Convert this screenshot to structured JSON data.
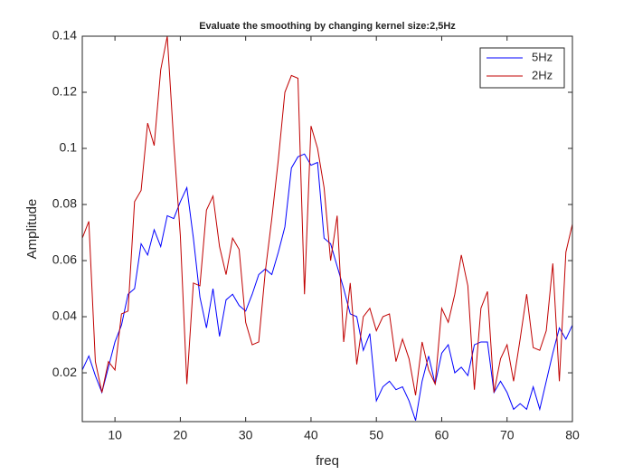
{
  "chart_data": {
    "type": "line",
    "title": "Evaluate the smoothing by changing kernel size:2,5Hz",
    "xlabel": "freq",
    "ylabel": "Amplitude",
    "x": [
      5,
      6,
      7,
      8,
      9,
      10,
      11,
      12,
      13,
      14,
      15,
      16,
      17,
      18,
      19,
      20,
      21,
      22,
      23,
      24,
      25,
      26,
      27,
      28,
      29,
      30,
      31,
      32,
      33,
      34,
      35,
      36,
      37,
      38,
      39,
      40,
      41,
      42,
      43,
      44,
      45,
      46,
      47,
      48,
      49,
      50,
      51,
      52,
      53,
      54,
      55,
      56,
      57,
      58,
      59,
      60,
      61,
      62,
      63,
      64,
      65,
      66,
      67,
      68,
      69,
      70,
      71,
      72,
      73,
      74,
      75,
      76,
      77,
      78,
      79,
      80
    ],
    "series": [
      {
        "name": "5Hz",
        "color": "#0000ff",
        "values": [
          0.021,
          0.026,
          0.019,
          0.013,
          0.022,
          0.031,
          0.037,
          0.048,
          0.05,
          0.066,
          0.062,
          0.071,
          0.065,
          0.076,
          0.075,
          0.081,
          0.086,
          0.068,
          0.047,
          0.036,
          0.05,
          0.033,
          0.046,
          0.048,
          0.044,
          0.042,
          0.048,
          0.055,
          0.057,
          0.055,
          0.063,
          0.072,
          0.093,
          0.097,
          0.098,
          0.094,
          0.095,
          0.068,
          0.066,
          0.058,
          0.05,
          0.041,
          0.04,
          0.028,
          0.034,
          0.01,
          0.015,
          0.017,
          0.014,
          0.015,
          0.01,
          0.003,
          0.017,
          0.026,
          0.016,
          0.027,
          0.03,
          0.02,
          0.022,
          0.019,
          0.03,
          0.031,
          0.031,
          0.013,
          0.017,
          0.013,
          0.007,
          0.009,
          0.007,
          0.015,
          0.007,
          0.017,
          0.027,
          0.036,
          0.032,
          0.037
        ]
      },
      {
        "name": "2Hz",
        "color": "#c00000",
        "values": [
          0.068,
          0.074,
          0.024,
          0.013,
          0.024,
          0.021,
          0.041,
          0.042,
          0.081,
          0.085,
          0.109,
          0.101,
          0.128,
          0.14,
          0.102,
          0.069,
          0.016,
          0.052,
          0.051,
          0.078,
          0.083,
          0.065,
          0.055,
          0.068,
          0.064,
          0.038,
          0.03,
          0.031,
          0.056,
          0.075,
          0.096,
          0.12,
          0.126,
          0.125,
          0.048,
          0.108,
          0.1,
          0.086,
          0.06,
          0.076,
          0.031,
          0.052,
          0.023,
          0.04,
          0.043,
          0.035,
          0.04,
          0.041,
          0.024,
          0.032,
          0.025,
          0.012,
          0.031,
          0.021,
          0.016,
          0.043,
          0.038,
          0.048,
          0.062,
          0.051,
          0.014,
          0.043,
          0.049,
          0.013,
          0.025,
          0.03,
          0.017,
          0.032,
          0.048,
          0.029,
          0.028,
          0.035,
          0.059,
          0.017,
          0.063,
          0.073
        ]
      }
    ],
    "xlim": [
      5,
      80
    ],
    "xticks": [
      10,
      20,
      30,
      40,
      50,
      60,
      70,
      80
    ],
    "ylim": [
      0.0026,
      0.14
    ],
    "yticks": [
      0.02,
      0.04,
      0.06,
      0.08,
      0.1,
      0.12,
      0.14
    ],
    "legend": "northeast"
  }
}
